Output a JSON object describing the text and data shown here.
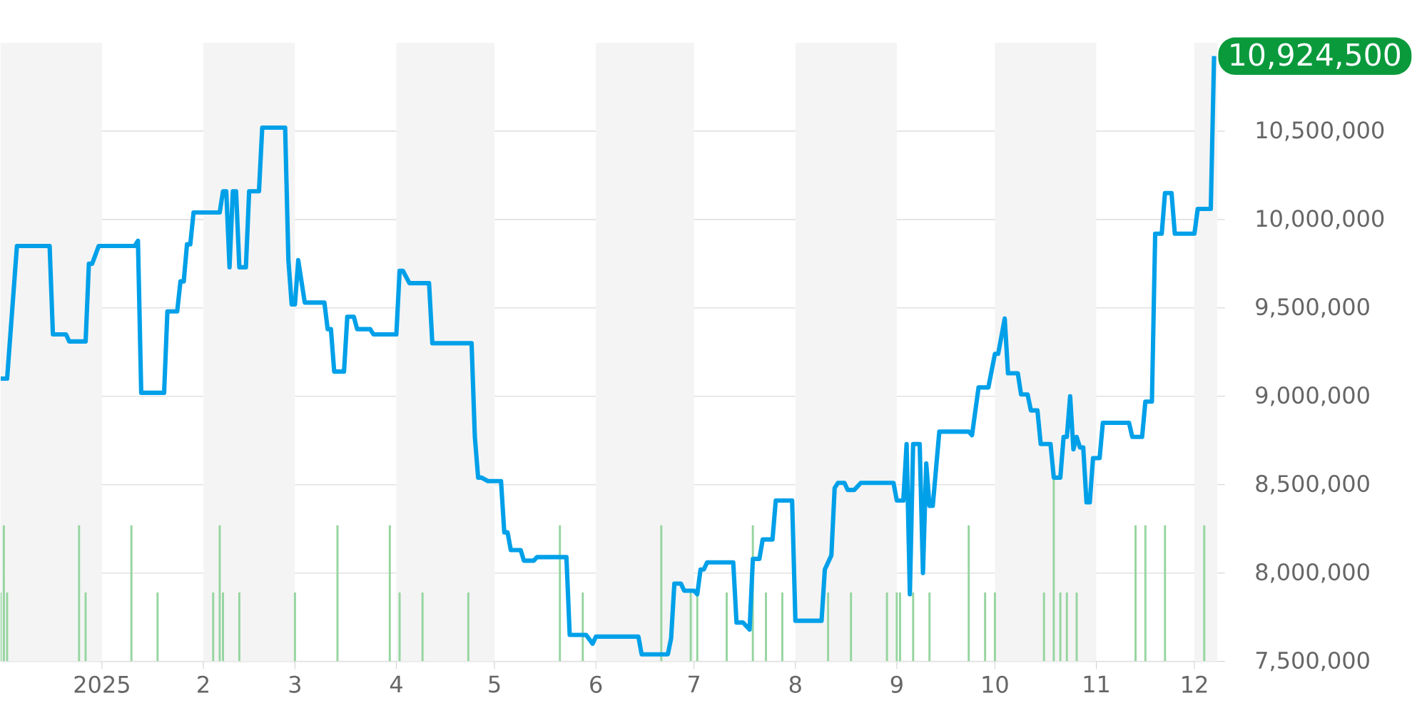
{
  "chart_data": {
    "type": "line",
    "xlim": [
      "2024-12-01",
      "2025-12-08"
    ],
    "ylim": [
      7500000,
      11000000
    ],
    "xticks": [
      {
        "value": "2025-01-01",
        "label": "2025"
      },
      {
        "value": "2025-02-01",
        "label": "2"
      },
      {
        "value": "2025-03-01",
        "label": "3"
      },
      {
        "value": "2025-04-01",
        "label": "4"
      },
      {
        "value": "2025-05-01",
        "label": "5"
      },
      {
        "value": "2025-06-01",
        "label": "6"
      },
      {
        "value": "2025-07-01",
        "label": "7"
      },
      {
        "value": "2025-08-01",
        "label": "8"
      },
      {
        "value": "2025-09-01",
        "label": "9"
      },
      {
        "value": "2025-10-01",
        "label": "10"
      },
      {
        "value": "2025-11-01",
        "label": "11"
      },
      {
        "value": "2025-12-01",
        "label": "12"
      }
    ],
    "yticks": [
      {
        "value": 7500000,
        "label": "7,500,000"
      },
      {
        "value": 8000000,
        "label": "8,000,000"
      },
      {
        "value": 8500000,
        "label": "8,500,000"
      },
      {
        "value": 9000000,
        "label": "9,000,000"
      },
      {
        "value": 9500000,
        "label": "9,500,000"
      },
      {
        "value": 10000000,
        "label": "10,000,000"
      },
      {
        "value": 10500000,
        "label": "10,500,000"
      }
    ],
    "grid": "y",
    "bands": [
      {
        "axis": "x",
        "from": "2024-12-01",
        "to": "2025-01-01",
        "color": "#f4f4f4"
      },
      {
        "axis": "x",
        "from": "2025-02-01",
        "to": "2025-03-01",
        "color": "#f4f4f4"
      },
      {
        "axis": "x",
        "from": "2025-04-01",
        "to": "2025-05-01",
        "color": "#f4f4f4"
      },
      {
        "axis": "x",
        "from": "2025-06-01",
        "to": "2025-07-01",
        "color": "#f4f4f4"
      },
      {
        "axis": "x",
        "from": "2025-08-01",
        "to": "2025-09-01",
        "color": "#f4f4f4"
      },
      {
        "axis": "x",
        "from": "2025-10-01",
        "to": "2025-11-01",
        "color": "#f4f4f4"
      },
      {
        "axis": "x",
        "from": "2025-12-01",
        "to": "2025-12-08",
        "color": "#f4f4f4"
      }
    ],
    "annotations": [
      {
        "text": "10,924,500",
        "x": "2025-12-07",
        "y": 10924500
      }
    ],
    "series": [
      {
        "type": "bar",
        "color": "#95d5a0",
        "x": [
          "2024-12-01",
          "2024-12-02",
          "2024-12-03",
          "2024-12-25",
          "2024-12-27",
          "2025-01-10",
          "2025-01-18",
          "2025-02-04",
          "2025-02-06",
          "2025-02-07",
          "2025-02-12",
          "2025-03-01",
          "2025-03-14",
          "2025-03-30",
          "2025-04-02",
          "2025-04-09",
          "2025-04-23",
          "2025-05-21",
          "2025-05-28",
          "2025-06-21",
          "2025-06-30",
          "2025-07-02",
          "2025-07-11",
          "2025-07-19",
          "2025-07-23",
          "2025-07-28",
          "2025-08-11",
          "2025-08-18",
          "2025-08-29",
          "2025-09-01",
          "2025-09-02",
          "2025-09-06",
          "2025-09-11",
          "2025-09-23",
          "2025-09-28",
          "2025-10-01",
          "2025-10-16",
          "2025-10-19",
          "2025-10-21",
          "2025-10-23",
          "2025-10-26",
          "2025-11-13",
          "2025-11-16",
          "2025-11-22",
          "2025-12-04"
        ],
        "values": [
          7890000,
          8270000,
          7890000,
          8270000,
          7890000,
          8270000,
          7890000,
          7890000,
          8270000,
          7890000,
          7890000,
          7890000,
          8270000,
          8270000,
          7890000,
          7890000,
          7890000,
          8270000,
          7890000,
          8270000,
          7890000,
          7890000,
          7890000,
          8270000,
          7890000,
          7890000,
          7890000,
          7890000,
          7890000,
          7890000,
          7890000,
          7890000,
          7890000,
          8270000,
          7890000,
          7890000,
          7890000,
          8530000,
          7890000,
          7890000,
          7890000,
          8270000,
          8270000,
          8270000,
          8270000
        ]
      },
      {
        "color": "#00a0e9",
        "x": [
          "2024-12-01",
          "2024-12-03",
          "2024-12-06",
          "2024-12-16",
          "2024-12-17",
          "2024-12-21",
          "2024-12-22",
          "2024-12-27",
          "2024-12-28",
          "2024-12-29",
          "2024-12-31",
          "2025-01-11",
          "2025-01-12",
          "2025-01-13",
          "2025-01-20",
          "2025-01-21",
          "2025-01-24",
          "2025-01-25",
          "2025-01-26",
          "2025-01-27",
          "2025-01-28",
          "2025-01-29",
          "2025-02-06",
          "2025-02-07",
          "2025-02-08",
          "2025-02-09",
          "2025-02-10",
          "2025-02-11",
          "2025-02-12",
          "2025-02-14",
          "2025-02-15",
          "2025-02-18",
          "2025-02-19",
          "2025-02-26",
          "2025-02-27",
          "2025-02-28",
          "2025-03-01",
          "2025-03-02",
          "2025-03-04",
          "2025-03-10",
          "2025-03-11",
          "2025-03-12",
          "2025-03-13",
          "2025-03-16",
          "2025-03-17",
          "2025-03-19",
          "2025-03-20",
          "2025-03-24",
          "2025-03-25",
          "2025-04-01",
          "2025-04-02",
          "2025-04-03",
          "2025-04-05",
          "2025-04-11",
          "2025-04-12",
          "2025-04-24",
          "2025-04-25",
          "2025-04-26",
          "2025-04-27",
          "2025-04-29",
          "2025-05-03",
          "2025-05-04",
          "2025-05-05",
          "2025-05-06",
          "2025-05-09",
          "2025-05-10",
          "2025-05-13",
          "2025-05-14",
          "2025-05-23",
          "2025-05-24",
          "2025-05-29",
          "2025-05-31",
          "2025-06-01",
          "2025-06-14",
          "2025-06-15",
          "2025-06-23",
          "2025-06-24",
          "2025-06-25",
          "2025-06-27",
          "2025-06-28",
          "2025-07-01",
          "2025-07-02",
          "2025-07-03",
          "2025-07-04",
          "2025-07-05",
          "2025-07-13",
          "2025-07-14",
          "2025-07-16",
          "2025-07-18",
          "2025-07-19",
          "2025-07-21",
          "2025-07-22",
          "2025-07-25",
          "2025-07-26",
          "2025-07-31",
          "2025-08-01",
          "2025-08-09",
          "2025-08-10",
          "2025-08-12",
          "2025-08-13",
          "2025-08-14",
          "2025-08-16",
          "2025-08-17",
          "2025-08-19",
          "2025-08-21",
          "2025-08-31",
          "2025-09-01",
          "2025-09-03",
          "2025-09-04",
          "2025-09-05",
          "2025-09-06",
          "2025-09-08",
          "2025-09-09",
          "2025-09-10",
          "2025-09-11",
          "2025-09-12",
          "2025-09-14",
          "2025-09-23",
          "2025-09-24",
          "2025-09-26",
          "2025-09-29",
          "2025-10-01",
          "2025-10-02",
          "2025-10-04",
          "2025-10-05",
          "2025-10-08",
          "2025-10-09",
          "2025-10-11",
          "2025-10-12",
          "2025-10-14",
          "2025-10-15",
          "2025-10-18",
          "2025-10-19",
          "2025-10-21",
          "2025-10-22",
          "2025-10-23",
          "2025-10-24",
          "2025-10-25",
          "2025-10-26",
          "2025-10-27",
          "2025-10-28",
          "2025-10-29",
          "2025-10-30",
          "2025-10-31",
          "2025-11-02",
          "2025-11-03",
          "2025-11-11",
          "2025-11-12",
          "2025-11-15",
          "2025-11-16",
          "2025-11-18",
          "2025-11-19",
          "2025-11-21",
          "2025-11-22",
          "2025-11-24",
          "2025-11-25",
          "2025-12-01",
          "2025-12-02",
          "2025-12-06",
          "2025-12-07"
        ],
        "values": [
          9100000,
          9100000,
          9850000,
          9850000,
          9350000,
          9350000,
          9310000,
          9310000,
          9750000,
          9750000,
          9850000,
          9850000,
          9880000,
          9020000,
          9020000,
          9480000,
          9480000,
          9650000,
          9650000,
          9860000,
          9860000,
          10040000,
          10040000,
          10160000,
          10160000,
          9730000,
          10160000,
          10160000,
          9730000,
          9730000,
          10160000,
          10160000,
          10520000,
          10520000,
          9770000,
          9520000,
          9520000,
          9770000,
          9530000,
          9530000,
          9380000,
          9380000,
          9140000,
          9140000,
          9450000,
          9450000,
          9380000,
          9380000,
          9350000,
          9350000,
          9710000,
          9710000,
          9640000,
          9640000,
          9300000,
          9300000,
          8770000,
          8540000,
          8540000,
          8520000,
          8520000,
          8230000,
          8230000,
          8130000,
          8130000,
          8070000,
          8070000,
          8090000,
          8090000,
          7650000,
          7650000,
          7600000,
          7640000,
          7640000,
          7540000,
          7540000,
          7630000,
          7940000,
          7940000,
          7900000,
          7900000,
          7880000,
          8020000,
          8020000,
          8060000,
          8060000,
          7720000,
          7720000,
          7680000,
          8080000,
          8080000,
          8190000,
          8190000,
          8410000,
          8410000,
          7730000,
          7730000,
          8020000,
          8100000,
          8480000,
          8510000,
          8510000,
          8470000,
          8470000,
          8510000,
          8510000,
          8410000,
          8410000,
          8730000,
          7880000,
          8730000,
          8730000,
          8000000,
          8620000,
          8380000,
          8380000,
          8800000,
          8800000,
          8780000,
          9050000,
          9050000,
          9240000,
          9240000,
          9440000,
          9130000,
          9130000,
          9010000,
          9010000,
          8920000,
          8920000,
          8730000,
          8730000,
          8540000,
          8540000,
          8770000,
          8770000,
          9000000,
          8700000,
          8770000,
          8710000,
          8710000,
          8400000,
          8400000,
          8650000,
          8650000,
          8850000,
          8850000,
          8770000,
          8770000,
          8970000,
          8970000,
          9920000,
          9920000,
          10150000,
          10150000,
          9920000,
          9920000,
          10060000,
          10060000,
          10924500
        ]
      }
    ]
  }
}
